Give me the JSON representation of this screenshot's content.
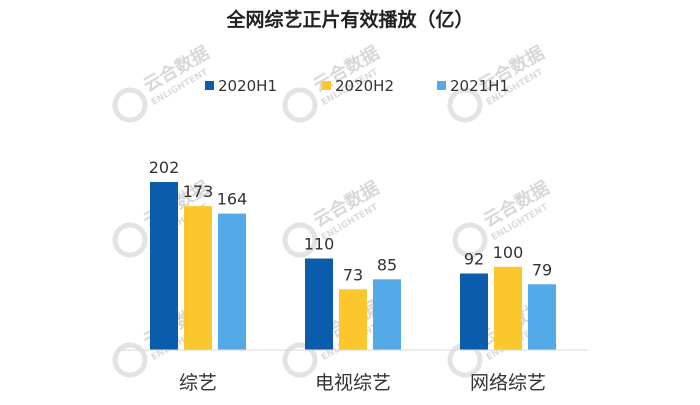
{
  "chart_data": {
    "type": "bar",
    "title": "全网综艺正片有效播放（亿）",
    "categories": [
      "综艺",
      "电视综艺",
      "网络综艺"
    ],
    "series": [
      {
        "name": "2020H1",
        "values": [
          202,
          110,
          92
        ],
        "color": "#0b5cab"
      },
      {
        "name": "2020H2",
        "values": [
          173,
          73,
          100
        ],
        "color": "#fcc72c"
      },
      {
        "name": "2021H1",
        "values": [
          164,
          85,
          79
        ],
        "color": "#54a9e8"
      }
    ],
    "xlabel": "",
    "ylabel": "",
    "ylim": [
      0,
      202
    ],
    "grid": false,
    "legend": "top-center",
    "data_labels": true
  },
  "watermark": {
    "brand_cn": "云合数据",
    "brand_en": "ENLIGHTENT"
  }
}
